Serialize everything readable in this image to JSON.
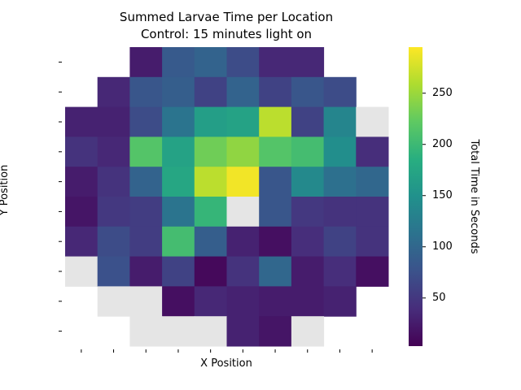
{
  "chart_data": {
    "type": "heatmap",
    "title_line1": "Summed Larvae Time per Location",
    "title_line2": "Control: 15 minutes light on",
    "xlabel": "X Position",
    "ylabel": "Y Position",
    "colorbar_label": "Total Time in Seconds",
    "colorbar_ticks": [
      {
        "value": 50,
        "label": "50"
      },
      {
        "value": 100,
        "label": "100"
      },
      {
        "value": 150,
        "label": "150"
      },
      {
        "value": 200,
        "label": "200"
      },
      {
        "value": 250,
        "label": "250"
      }
    ],
    "vmin": 3,
    "vmax": 295,
    "colormap": "viridis",
    "nan_color": "#e5e5e5",
    "n_cols": 10,
    "n_rows": 10,
    "values": [
      [
        null,
        null,
        25,
        85,
        95,
        70,
        35,
        35,
        null,
        null
      ],
      [
        null,
        35,
        80,
        90,
        60,
        95,
        60,
        80,
        70,
        null
      ],
      [
        30,
        30,
        70,
        115,
        165,
        170,
        265,
        60,
        135,
        "nan"
      ],
      [
        45,
        35,
        215,
        170,
        230,
        245,
        215,
        205,
        145,
        40
      ],
      [
        25,
        45,
        95,
        175,
        265,
        290,
        80,
        140,
        110,
        100
      ],
      [
        20,
        50,
        55,
        115,
        195,
        "nan",
        80,
        50,
        45,
        45
      ],
      [
        35,
        70,
        55,
        205,
        90,
        30,
        15,
        40,
        60,
        45
      ],
      [
        "nan",
        75,
        25,
        60,
        10,
        45,
        100,
        25,
        40,
        15
      ],
      [
        null,
        "nan",
        "nan",
        15,
        35,
        30,
        25,
        25,
        30,
        null
      ],
      [
        null,
        null,
        "nan",
        "nan",
        "nan",
        30,
        20,
        "nan",
        null,
        null
      ]
    ]
  }
}
